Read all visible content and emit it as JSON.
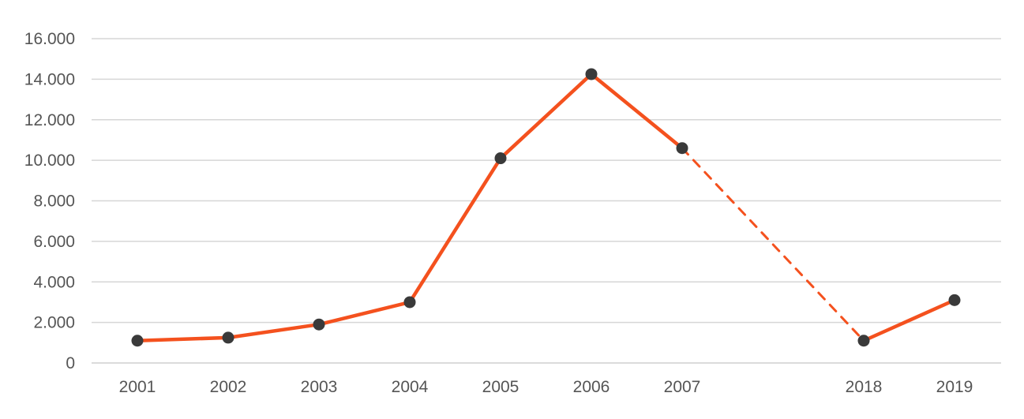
{
  "chart_data": {
    "type": "line",
    "title": "",
    "xlabel": "",
    "ylabel": "",
    "x": [
      "2001",
      "2002",
      "2003",
      "2004",
      "2005",
      "2006",
      "2007",
      "2018",
      "2019"
    ],
    "series": [
      {
        "values": [
          1100,
          1250,
          1900,
          3000,
          10100,
          14250,
          10600,
          1100,
          3100
        ],
        "color": "#f4511e",
        "marker_color": "#3a3a3a",
        "gap_after_category": "2007",
        "gap_style": "dashed"
      }
    ],
    "ylim": [
      0,
      16000
    ],
    "yticks": [
      0,
      2000,
      4000,
      6000,
      8000,
      10000,
      12000,
      14000,
      16000
    ],
    "ytick_labels": [
      "0",
      "2.000",
      "4.000",
      "6.000",
      "8.000",
      "10.000",
      "12.000",
      "14.000",
      "16.000"
    ],
    "grid": true,
    "legend": "none"
  }
}
